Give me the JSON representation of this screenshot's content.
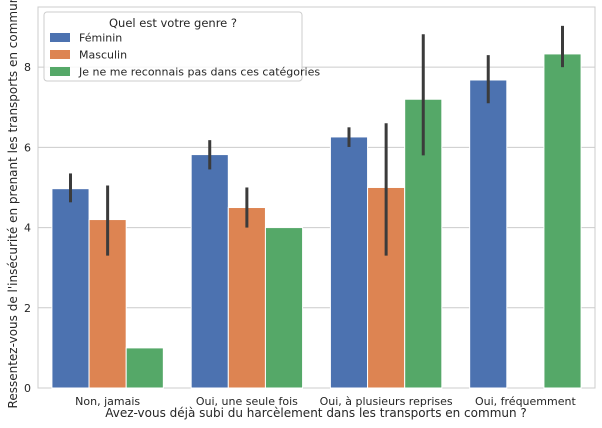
{
  "chart_data": {
    "type": "bar",
    "xlabel": "Avez-vous déjà subi du harcèlement dans les transports en commun ?",
    "ylabel": "Ressentez-vous de l'insécurité en prenant les transports en commun ?",
    "categories": [
      "Non, jamais",
      "Oui, une seule fois",
      "Oui, à plusieurs reprises",
      "Oui, fréquemment"
    ],
    "ylim": [
      0,
      9.5
    ],
    "yticks": [
      0,
      2,
      4,
      6,
      8
    ],
    "grid": "horizontal",
    "legend": {
      "title": "Quel est votre genre ?",
      "placement": "upper-left"
    },
    "series": [
      {
        "name": "Féminin",
        "color": "#4c72b0",
        "values": [
          4.97,
          5.82,
          6.26,
          7.68
        ],
        "ci": [
          [
            4.63,
            5.35
          ],
          [
            5.45,
            6.18
          ],
          [
            6.01,
            6.5
          ],
          [
            7.1,
            8.3
          ]
        ]
      },
      {
        "name": "Masculin",
        "color": "#dd8452",
        "values": [
          4.2,
          4.5,
          5.0,
          null
        ],
        "ci": [
          [
            3.3,
            5.05
          ],
          [
            4.0,
            5.0
          ],
          [
            3.3,
            6.6
          ],
          null
        ]
      },
      {
        "name": "Je ne me reconnais pas dans ces catégories",
        "color": "#55a868",
        "values": [
          1.0,
          4.0,
          7.2,
          8.33
        ],
        "ci": [
          null,
          null,
          [
            5.8,
            8.82
          ],
          [
            8.0,
            9.03
          ]
        ]
      }
    ],
    "errorbar_color": "#3b3b3b"
  }
}
